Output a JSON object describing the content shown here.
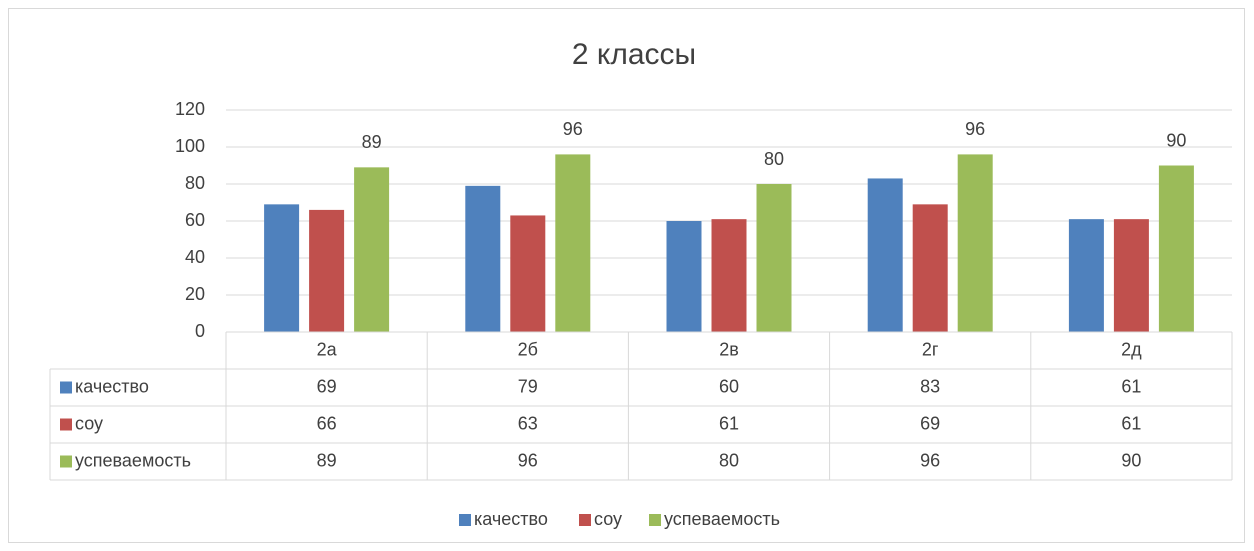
{
  "chart_data": {
    "type": "bar",
    "title": "2 классы",
    "categories": [
      "2а",
      "2б",
      "2в",
      "2г",
      "2д"
    ],
    "series": [
      {
        "name": "качество",
        "color": "#4f81bd",
        "values": [
          69,
          79,
          60,
          83,
          61
        ],
        "data_labels": false
      },
      {
        "name": "соу",
        "color": "#c0504d",
        "values": [
          66,
          63,
          61,
          69,
          61
        ],
        "data_labels": false
      },
      {
        "name": "успеваемость",
        "color": "#9bbb59",
        "values": [
          89,
          96,
          80,
          96,
          90
        ],
        "data_labels": true
      }
    ],
    "ylim": [
      0,
      120
    ],
    "yticks": [
      0,
      20,
      40,
      60,
      80,
      100,
      120
    ],
    "grid": true,
    "data_table": true,
    "legend": "bottom"
  }
}
